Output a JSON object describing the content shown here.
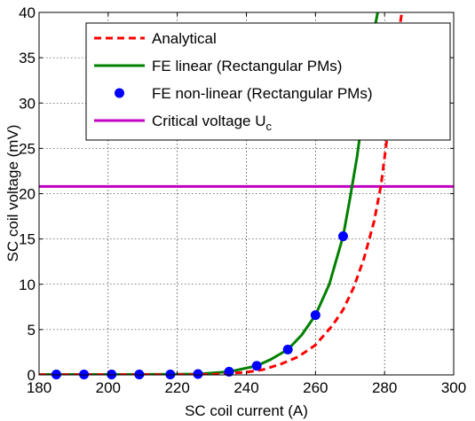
{
  "chart_data": {
    "type": "line",
    "xlabel": "SC coil current (A)",
    "ylabel": "SC coil voltage (mV)",
    "xlim": [
      180,
      300
    ],
    "ylim": [
      0,
      40
    ],
    "xticks": [
      180,
      200,
      220,
      240,
      260,
      280,
      300
    ],
    "yticks": [
      0,
      5,
      10,
      15,
      20,
      25,
      30,
      35,
      40
    ],
    "xtick_labels": [
      "180",
      "200",
      "220",
      "240",
      "260",
      "280",
      "300"
    ],
    "ytick_labels": [
      "0",
      "5",
      "10",
      "15",
      "20",
      "25",
      "30",
      "35",
      "40"
    ],
    "grid": true,
    "legend_position": "top-right",
    "series": [
      {
        "name": "Analytical",
        "style": "dashed",
        "color": "#ff0000",
        "x": [
          180,
          200,
          220,
          230,
          240,
          245,
          250,
          255,
          260,
          265,
          268,
          271,
          274,
          277,
          279,
          280,
          281,
          282,
          283,
          284,
          285
        ],
        "y": [
          0.02,
          0.02,
          0.03,
          0.05,
          0.3,
          0.6,
          1.2,
          2.0,
          3.3,
          5.5,
          7.2,
          9.6,
          12.8,
          17.0,
          21.0,
          24.0,
          27.0,
          30.5,
          34.0,
          37.5,
          40.0
        ]
      },
      {
        "name": "FE linear (Rectangular PMs)",
        "style": "solid",
        "color": "#008000",
        "x": [
          180,
          200,
          220,
          226,
          235,
          243,
          247,
          252,
          256,
          260,
          264,
          268,
          270,
          272,
          274,
          275,
          276,
          277,
          278
        ],
        "y": [
          0.05,
          0.05,
          0.07,
          0.1,
          0.35,
          1.0,
          1.7,
          2.8,
          4.4,
          6.6,
          10.0,
          15.3,
          19.5,
          24.0,
          29.5,
          32.5,
          35.0,
          38.0,
          40.0
        ]
      },
      {
        "name": "FE non-linear (Rectangular PMs)",
        "style": "markers",
        "color": "#0000ff",
        "x": [
          185,
          193,
          201,
          209,
          218,
          226,
          235,
          243,
          252,
          260,
          268
        ],
        "y": [
          0.05,
          0.05,
          0.05,
          0.05,
          0.05,
          0.1,
          0.35,
          1.0,
          2.8,
          6.6,
          15.3
        ]
      },
      {
        "name": "Critical voltage U",
        "name_subscript": "c",
        "style": "solid",
        "color": "#c000c0",
        "x": [
          180,
          300
        ],
        "y": [
          20.8,
          20.8
        ]
      }
    ]
  }
}
